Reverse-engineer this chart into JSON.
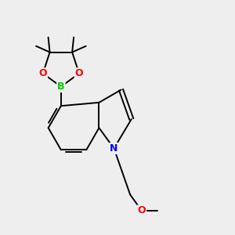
{
  "background_color": "#eeeeee",
  "bond_color": "#000000",
  "atom_colors": {
    "B": "#00cc00",
    "O": "#ff0000",
    "N": "#0000ff",
    "C": "#000000"
  },
  "figsize": [
    3.0,
    3.0
  ],
  "dpi": 100,
  "bond_lw": 1.4
}
